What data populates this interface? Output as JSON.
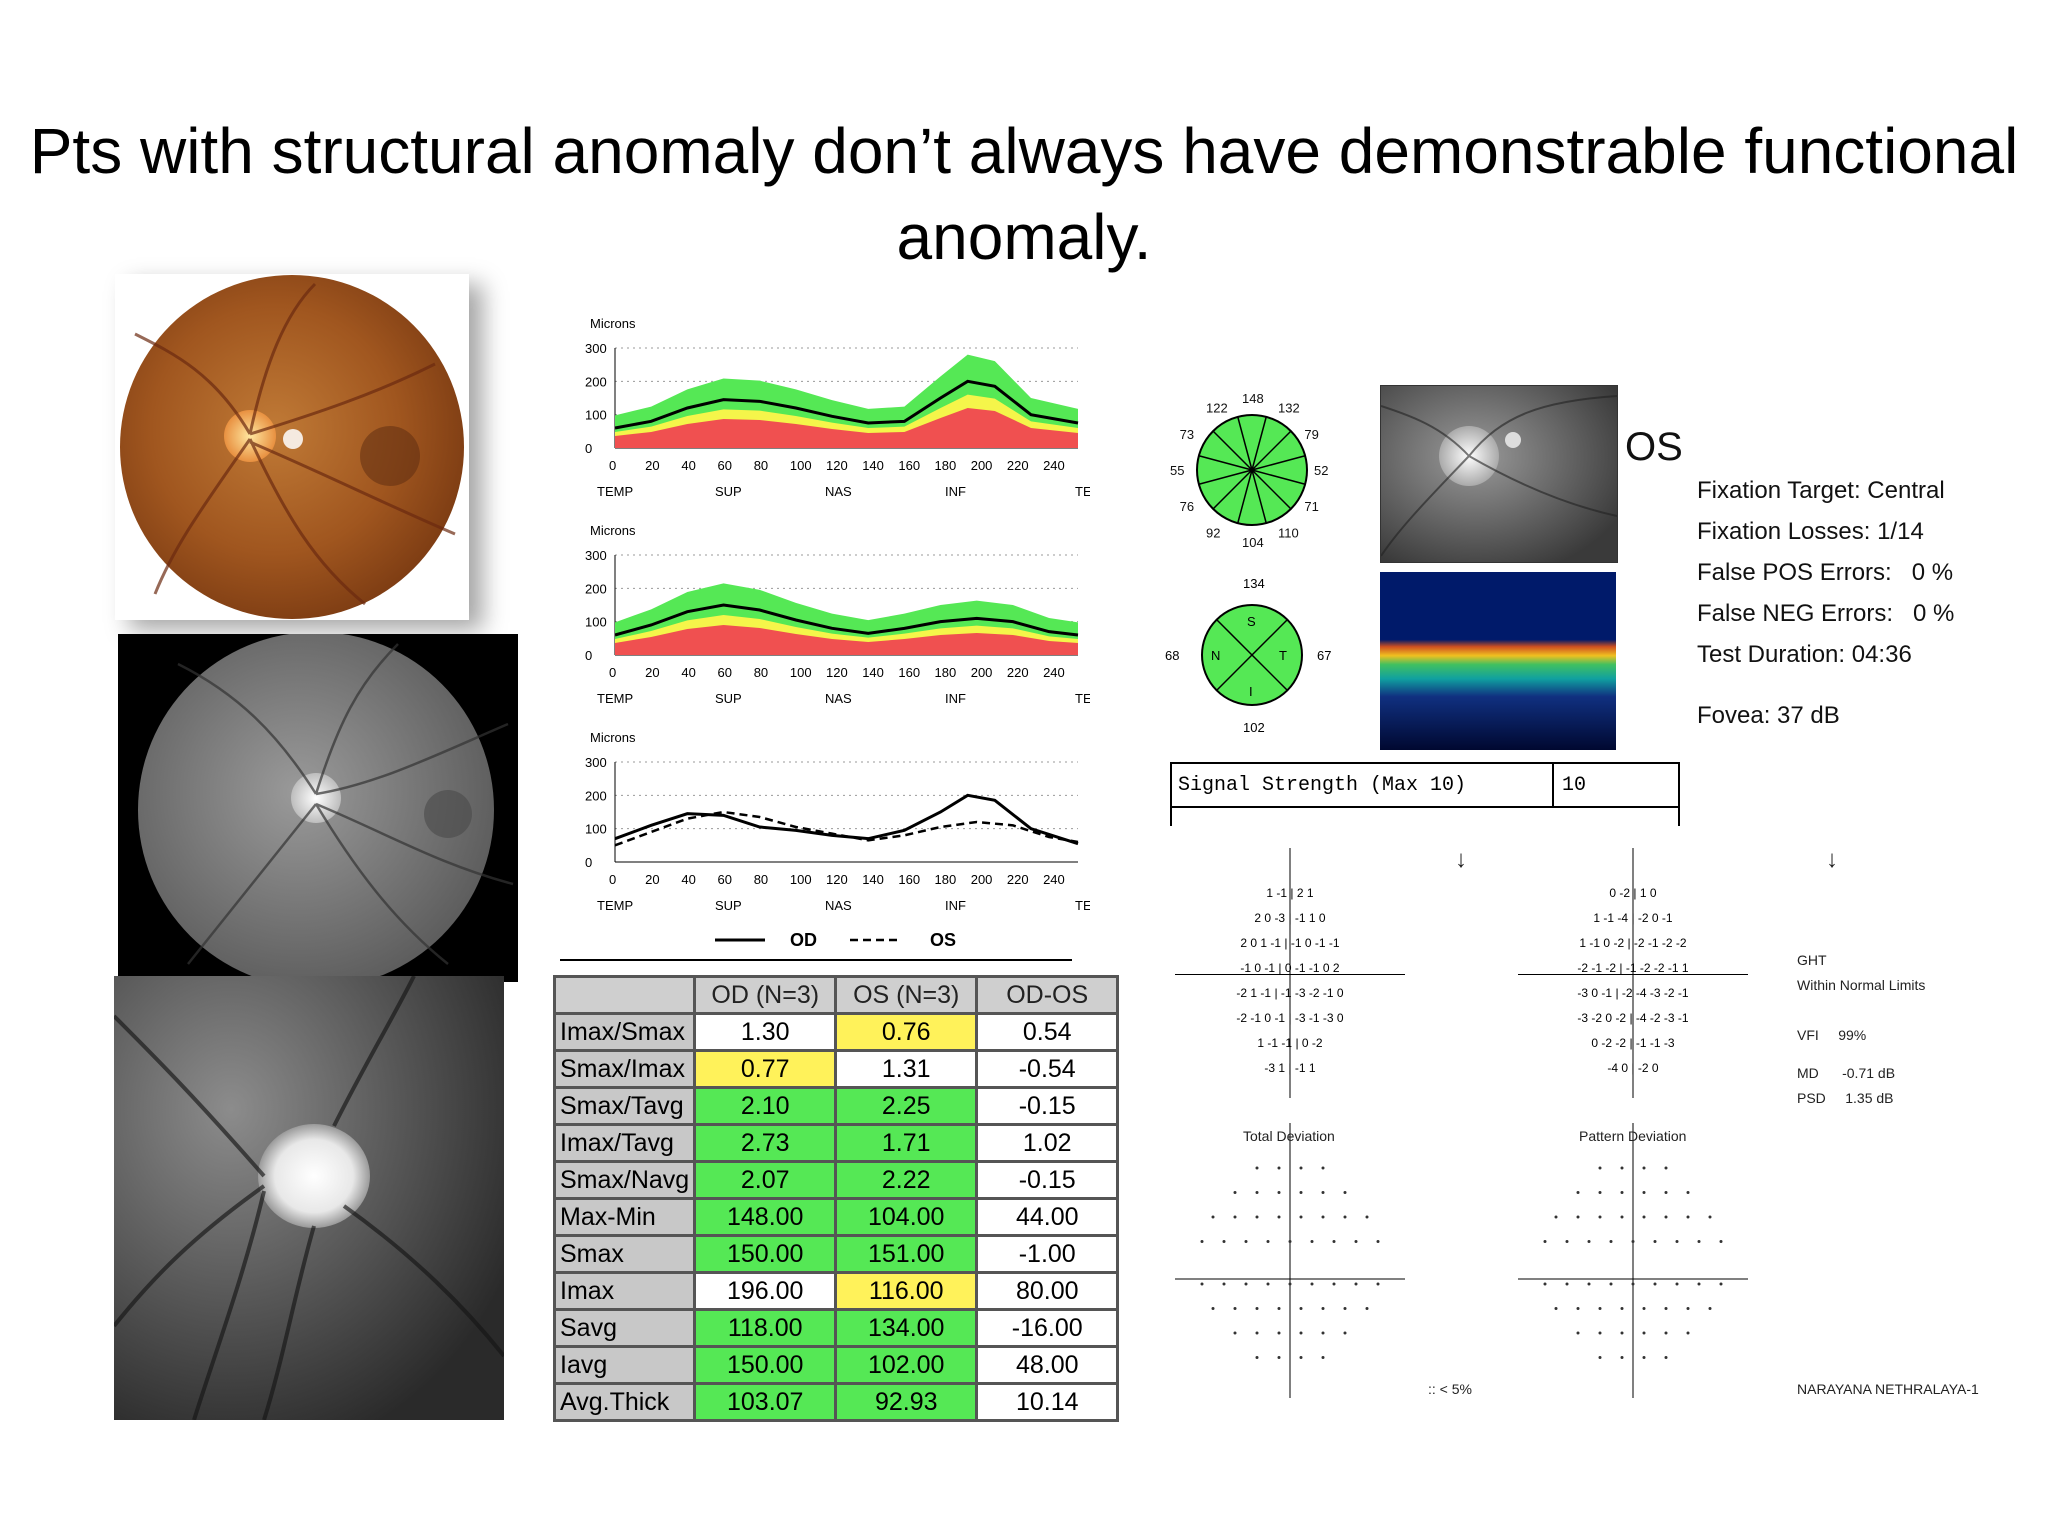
{
  "title": "Pts with structural anomaly don’t always have demonstrable functional anomaly.",
  "rnfl_charts": {
    "ylabel": "Microns",
    "yticks": [
      "300",
      "200",
      "100",
      "0"
    ],
    "xticks": [
      "0",
      "20",
      "40",
      "60",
      "80",
      "100",
      "120",
      "140",
      "160",
      "180",
      "200",
      "220",
      "240"
    ],
    "regions": [
      "TEMP",
      "SUP",
      "NAS",
      "INF",
      "TEMP"
    ],
    "legend_od": "OD",
    "legend_os": "OS"
  },
  "chart_data": [
    {
      "type": "area",
      "ylabel": "Microns",
      "ylim": [
        0,
        300
      ],
      "xlim": [
        0,
        256
      ],
      "series": [
        {
          "values": [
            [
              0,
              60
            ],
            [
              20,
              80
            ],
            [
              40,
              120
            ],
            [
              60,
              145
            ],
            [
              80,
              140
            ],
            [
              100,
              120
            ],
            [
              120,
              95
            ],
            [
              140,
              75
            ],
            [
              160,
              80
            ],
            [
              180,
              150
            ],
            [
              195,
              200
            ],
            [
              210,
              185
            ],
            [
              230,
              100
            ],
            [
              256,
              75
            ]
          ]
        }
      ]
    },
    {
      "type": "area",
      "ylabel": "Microns",
      "ylim": [
        0,
        300
      ],
      "xlim": [
        0,
        256
      ],
      "series": [
        {
          "values": [
            [
              0,
              60
            ],
            [
              20,
              90
            ],
            [
              40,
              130
            ],
            [
              60,
              150
            ],
            [
              80,
              135
            ],
            [
              100,
              105
            ],
            [
              120,
              80
            ],
            [
              140,
              65
            ],
            [
              160,
              80
            ],
            [
              180,
              100
            ],
            [
              200,
              110
            ],
            [
              220,
              100
            ],
            [
              240,
              70
            ],
            [
              256,
              60
            ]
          ]
        }
      ]
    },
    {
      "type": "line",
      "ylabel": "Microns",
      "ylim": [
        0,
        300
      ],
      "xlim": [
        0,
        256
      ],
      "series": [
        {
          "name": "OD",
          "values": [
            [
              0,
              70
            ],
            [
              20,
              110
            ],
            [
              40,
              145
            ],
            [
              60,
              140
            ],
            [
              80,
              105
            ],
            [
              100,
              95
            ],
            [
              120,
              80
            ],
            [
              140,
              70
            ],
            [
              160,
              95
            ],
            [
              180,
              150
            ],
            [
              195,
              200
            ],
            [
              210,
              185
            ],
            [
              230,
              100
            ],
            [
              256,
              55
            ]
          ]
        },
        {
          "name": "OS",
          "values": [
            [
              0,
              50
            ],
            [
              20,
              90
            ],
            [
              40,
              130
            ],
            [
              60,
              150
            ],
            [
              80,
              135
            ],
            [
              100,
              105
            ],
            [
              120,
              85
            ],
            [
              140,
              65
            ],
            [
              160,
              80
            ],
            [
              180,
              105
            ],
            [
              200,
              120
            ],
            [
              220,
              110
            ],
            [
              240,
              75
            ],
            [
              256,
              60
            ]
          ]
        }
      ]
    }
  ],
  "table": {
    "headers": [
      "",
      "OD (N=3)",
      "OS (N=3)",
      "OD-OS"
    ],
    "rows": [
      {
        "label": "Imax/Smax",
        "od": "1.30",
        "os": "0.76",
        "diff": "0.54",
        "odc": "w",
        "osc": "y"
      },
      {
        "label": "Smax/Imax",
        "od": "0.77",
        "os": "1.31",
        "diff": "-0.54",
        "odc": "y",
        "osc": "w"
      },
      {
        "label": "Smax/Tavg",
        "od": "2.10",
        "os": "2.25",
        "diff": "-0.15",
        "odc": "g",
        "osc": "g"
      },
      {
        "label": "Imax/Tavg",
        "od": "2.73",
        "os": "1.71",
        "diff": "1.02",
        "odc": "g",
        "osc": "g"
      },
      {
        "label": "Smax/Navg",
        "od": "2.07",
        "os": "2.22",
        "diff": "-0.15",
        "odc": "g",
        "osc": "g"
      },
      {
        "label": "Max-Min",
        "od": "148.00",
        "os": "104.00",
        "diff": "44.00",
        "odc": "g",
        "osc": "g"
      },
      {
        "label": "Smax",
        "od": "150.00",
        "os": "151.00",
        "diff": "-1.00",
        "odc": "g",
        "osc": "g"
      },
      {
        "label": "Imax",
        "od": "196.00",
        "os": "116.00",
        "diff": "80.00",
        "odc": "w",
        "osc": "y"
      },
      {
        "label": "Savg",
        "od": "118.00",
        "os": "134.00",
        "diff": "-16.00",
        "odc": "g",
        "osc": "g"
      },
      {
        "label": "Iavg",
        "od": "150.00",
        "os": "102.00",
        "diff": "48.00",
        "odc": "g",
        "osc": "g"
      },
      {
        "label": "Avg.Thick",
        "od": "103.07",
        "os": "92.93",
        "diff": "10.14",
        "odc": "g",
        "osc": "g"
      }
    ]
  },
  "clock_hours": [
    "148",
    "132",
    "79",
    "52",
    "71",
    "110",
    "104",
    "92",
    "76",
    "55",
    "73",
    "122"
  ],
  "quadrants": {
    "top": "134",
    "left": "68",
    "right": "67",
    "bottom": "102",
    "s": "S",
    "n": "N",
    "t": "T",
    "i": "I"
  },
  "eye_label": "OS",
  "signal": {
    "label": "Signal Strength (Max 10)",
    "value": "10"
  },
  "visual_field": {
    "fixation_target": "Fixation Target: Central",
    "fixation_losses": "Fixation Losses: 1/14",
    "false_pos": "False POS Errors:   0 %",
    "false_neg": "False NEG Errors:   0 %",
    "test_duration": "Test Duration: 04:36",
    "fovea": "Fovea: 37 dB",
    "ght_label": "GHT",
    "ght_value": "Within Normal Limits",
    "vfi": "VFI     99%",
    "md": "MD      -0.71 dB",
    "psd": "PSD     1.35 dB",
    "total_deviation": "Total Deviation",
    "pattern_deviation": "Pattern Deviation",
    "p_legend": ":: < 5%",
    "footer": "NARAYANA NETHRALAYA-1"
  },
  "td_rows": [
    "1 -1 | 2 1",
    "2 0 -3 | -1 1 0",
    "2 0 1 -1 | -1 0 -1 -1",
    "-1 0 -1 | 0 -1 -1 0 2",
    "-2 1 -1 | -1 -3 -2 -1 0",
    "-2 -1 0 -1 | -3 -1 -3 0",
    "1 -1 -1 | 0 -2",
    "-3 1 | -1 1"
  ],
  "pd_rows": [
    "0 -2 | 1 0",
    "1 -1 -4 | -2 0 -1",
    "1 -1 0 -2 | -2 -1 -2 -2",
    "-2 -1 -2 | -1 -2 -2 -1 1",
    "-3 0 -1 | -2 -4 -3 -2 -1",
    "-3 -2 0 -2 | -4 -2 -3 -1",
    "0 -2 -2 | -1 -1 -3",
    "-4 0 | -2 0"
  ]
}
